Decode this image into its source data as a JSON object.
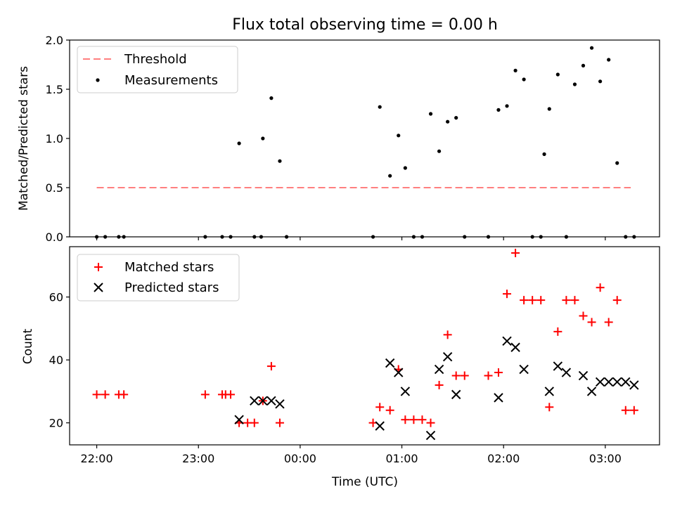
{
  "chart_data": [
    {
      "type": "scatter",
      "title": "Flux total observing time = 0.00 h",
      "xlabel": "",
      "ylabel": "Matched/Predicted stars",
      "xlim": [
        "21:44",
        "03:32"
      ],
      "ylim": [
        0,
        2.0
      ],
      "yticks": [
        "0.0",
        "0.5",
        "1.0",
        "1.5",
        "2.0"
      ],
      "grid": false,
      "legend": "upper-left",
      "threshold": {
        "name": "Threshold",
        "value": 0.5,
        "x_range": [
          "22:00",
          "03:15"
        ],
        "color": "#ff7f7f",
        "style": "dashed"
      },
      "series": [
        {
          "name": "Measurements",
          "color": "#000000",
          "marker": "dot",
          "x": [
            "22:00",
            "22:05",
            "22:13",
            "22:16",
            "23:04",
            "23:14",
            "23:19",
            "23:24",
            "23:33",
            "23:37",
            "23:38",
            "23:43",
            "23:48",
            "23:52",
            "00:43",
            "00:47",
            "00:53",
            "00:58",
            "01:02",
            "01:07",
            "01:12",
            "01:17",
            "01:22",
            "01:27",
            "01:32",
            "01:37",
            "01:51",
            "01:57",
            "02:02",
            "02:07",
            "02:12",
            "02:17",
            "02:22",
            "02:24",
            "02:27",
            "02:32",
            "02:37",
            "02:42",
            "02:47",
            "02:52",
            "02:57",
            "03:02",
            "03:07",
            "03:12",
            "03:17"
          ],
          "y": [
            0.0,
            0.0,
            0.0,
            0.0,
            0.0,
            0.0,
            0.0,
            0.95,
            0.0,
            0.0,
            1.0,
            1.41,
            0.77,
            0.0,
            0.0,
            1.32,
            0.62,
            1.03,
            0.7,
            0.0,
            0.0,
            1.25,
            0.87,
            1.17,
            1.21,
            0.0,
            0.0,
            1.29,
            1.33,
            1.69,
            1.6,
            0.0,
            0.0,
            0.84,
            1.3,
            1.65,
            0.0,
            1.55,
            1.74,
            1.92,
            1.58,
            1.8,
            0.75,
            0.0,
            0.0
          ]
        }
      ]
    },
    {
      "type": "scatter",
      "title": "",
      "xlabel": "Time (UTC)",
      "ylabel": "Count",
      "xlim": [
        "21:44",
        "03:32"
      ],
      "xticks": [
        "22:00",
        "23:00",
        "00:00",
        "01:00",
        "02:00",
        "03:00"
      ],
      "ylim": [
        13,
        76
      ],
      "yticks": [
        "20",
        "40",
        "60"
      ],
      "grid": false,
      "legend": "upper-left",
      "series": [
        {
          "name": "Matched stars",
          "color": "#ff0000",
          "marker": "plus",
          "x": [
            "22:00",
            "22:05",
            "22:13",
            "22:16",
            "23:04",
            "23:14",
            "23:16",
            "23:19",
            "23:24",
            "23:29",
            "23:33",
            "23:38",
            "23:43",
            "23:48",
            "00:43",
            "00:47",
            "00:53",
            "00:58",
            "01:02",
            "01:07",
            "01:12",
            "01:17",
            "01:22",
            "01:27",
            "01:32",
            "01:37",
            "01:51",
            "01:57",
            "02:02",
            "02:07",
            "02:12",
            "02:17",
            "02:22",
            "02:27",
            "02:32",
            "02:37",
            "02:42",
            "02:47",
            "02:52",
            "02:57",
            "03:02",
            "03:07",
            "03:12",
            "03:17"
          ],
          "y": [
            29,
            29,
            29,
            29,
            29,
            29,
            29,
            29,
            20,
            20,
            20,
            27,
            38,
            20,
            20,
            25,
            24,
            37,
            21,
            21,
            21,
            20,
            32,
            48,
            35,
            35,
            35,
            36,
            61,
            74,
            59,
            59,
            59,
            25,
            49,
            59,
            59,
            54,
            52,
            63,
            52,
            59,
            24,
            24
          ]
        },
        {
          "name": "Predicted stars",
          "color": "#000000",
          "marker": "x",
          "x": [
            "23:24",
            "23:33",
            "23:38",
            "23:43",
            "23:48",
            "00:47",
            "00:53",
            "00:58",
            "01:02",
            "01:17",
            "01:22",
            "01:27",
            "01:32",
            "01:57",
            "02:02",
            "02:07",
            "02:12",
            "02:27",
            "02:32",
            "02:37",
            "02:47",
            "02:52",
            "02:57",
            "03:02",
            "03:07",
            "03:12",
            "03:17"
          ],
          "y": [
            21,
            27,
            27,
            27,
            26,
            19,
            39,
            36,
            30,
            16,
            37,
            41,
            29,
            28,
            46,
            44,
            37,
            30,
            38,
            36,
            35,
            30,
            33,
            33,
            33,
            33,
            32
          ]
        }
      ]
    }
  ]
}
